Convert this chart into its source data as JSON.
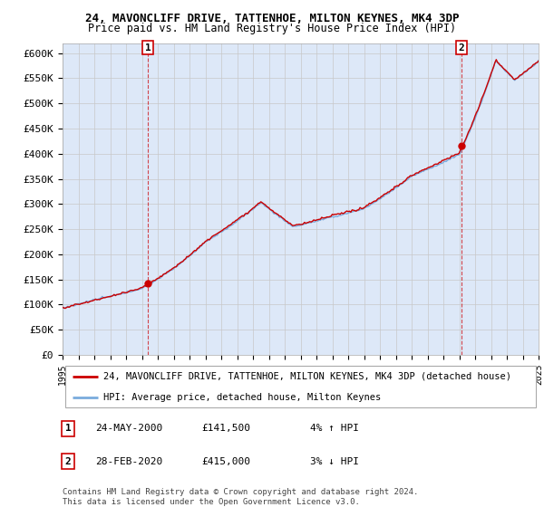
{
  "title1": "24, MAVONCLIFF DRIVE, TATTENHOE, MILTON KEYNES, MK4 3DP",
  "title2": "Price paid vs. HM Land Registry's House Price Index (HPI)",
  "ylim": [
    0,
    620000
  ],
  "yticks": [
    0,
    50000,
    100000,
    150000,
    200000,
    250000,
    300000,
    350000,
    400000,
    450000,
    500000,
    550000,
    600000
  ],
  "ytick_labels": [
    "£0",
    "£50K",
    "£100K",
    "£150K",
    "£200K",
    "£250K",
    "£300K",
    "£350K",
    "£400K",
    "£450K",
    "£500K",
    "£550K",
    "£600K"
  ],
  "x_start_year": 1995,
  "x_end_year": 2025,
  "grid_color": "#c8c8c8",
  "bg_color": "#dde8f8",
  "hpi_color": "#7aabdd",
  "price_color": "#cc0000",
  "sale1_date": 2000.38,
  "sale1_price": 141500,
  "sale1_label": "1",
  "sale2_date": 2020.15,
  "sale2_price": 415000,
  "sale2_label": "2",
  "legend_line1": "24, MAVONCLIFF DRIVE, TATTENHOE, MILTON KEYNES, MK4 3DP (detached house)",
  "legend_line2": "HPI: Average price, detached house, Milton Keynes",
  "annot1_date": "24-MAY-2000",
  "annot1_price": "£141,500",
  "annot1_hpi": "4% ↑ HPI",
  "annot2_date": "28-FEB-2020",
  "annot2_price": "£415,000",
  "annot2_hpi": "3% ↓ HPI",
  "footer": "Contains HM Land Registry data © Crown copyright and database right 2024.\nThis data is licensed under the Open Government Licence v3.0."
}
